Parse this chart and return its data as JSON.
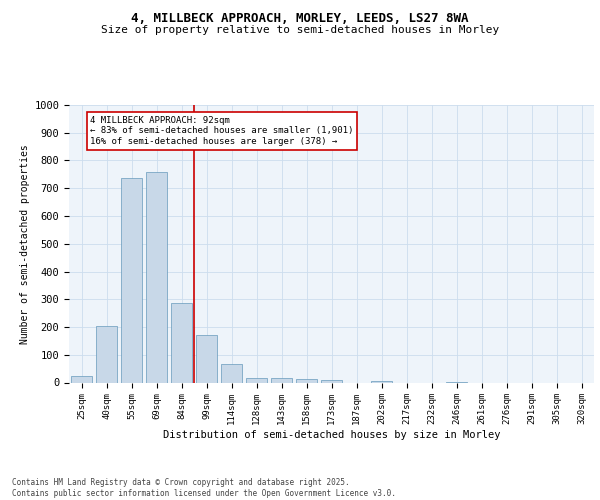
{
  "title_line1": "4, MILLBECK APPROACH, MORLEY, LEEDS, LS27 8WA",
  "title_line2": "Size of property relative to semi-detached houses in Morley",
  "xlabel": "Distribution of semi-detached houses by size in Morley",
  "ylabel": "Number of semi-detached properties",
  "categories": [
    "25sqm",
    "40sqm",
    "55sqm",
    "69sqm",
    "84sqm",
    "99sqm",
    "114sqm",
    "128sqm",
    "143sqm",
    "158sqm",
    "173sqm",
    "187sqm",
    "202sqm",
    "217sqm",
    "232sqm",
    "246sqm",
    "261sqm",
    "276sqm",
    "291sqm",
    "305sqm",
    "320sqm"
  ],
  "values": [
    22,
    202,
    738,
    757,
    285,
    170,
    65,
    18,
    15,
    12,
    10,
    0,
    5,
    0,
    0,
    3,
    0,
    0,
    0,
    0,
    0
  ],
  "bar_color": "#c8d8e8",
  "bar_edge_color": "#6699bb",
  "grid_color": "#ccddee",
  "bg_color": "#eef4fa",
  "vline_x": 4.5,
  "vline_color": "#cc0000",
  "annotation_text": "4 MILLBECK APPROACH: 92sqm\n← 83% of semi-detached houses are smaller (1,901)\n16% of semi-detached houses are larger (378) →",
  "annotation_box_color": "#cc0000",
  "footer_text": "Contains HM Land Registry data © Crown copyright and database right 2025.\nContains public sector information licensed under the Open Government Licence v3.0.",
  "ylim": [
    0,
    1000
  ],
  "yticks": [
    0,
    100,
    200,
    300,
    400,
    500,
    600,
    700,
    800,
    900,
    1000
  ]
}
